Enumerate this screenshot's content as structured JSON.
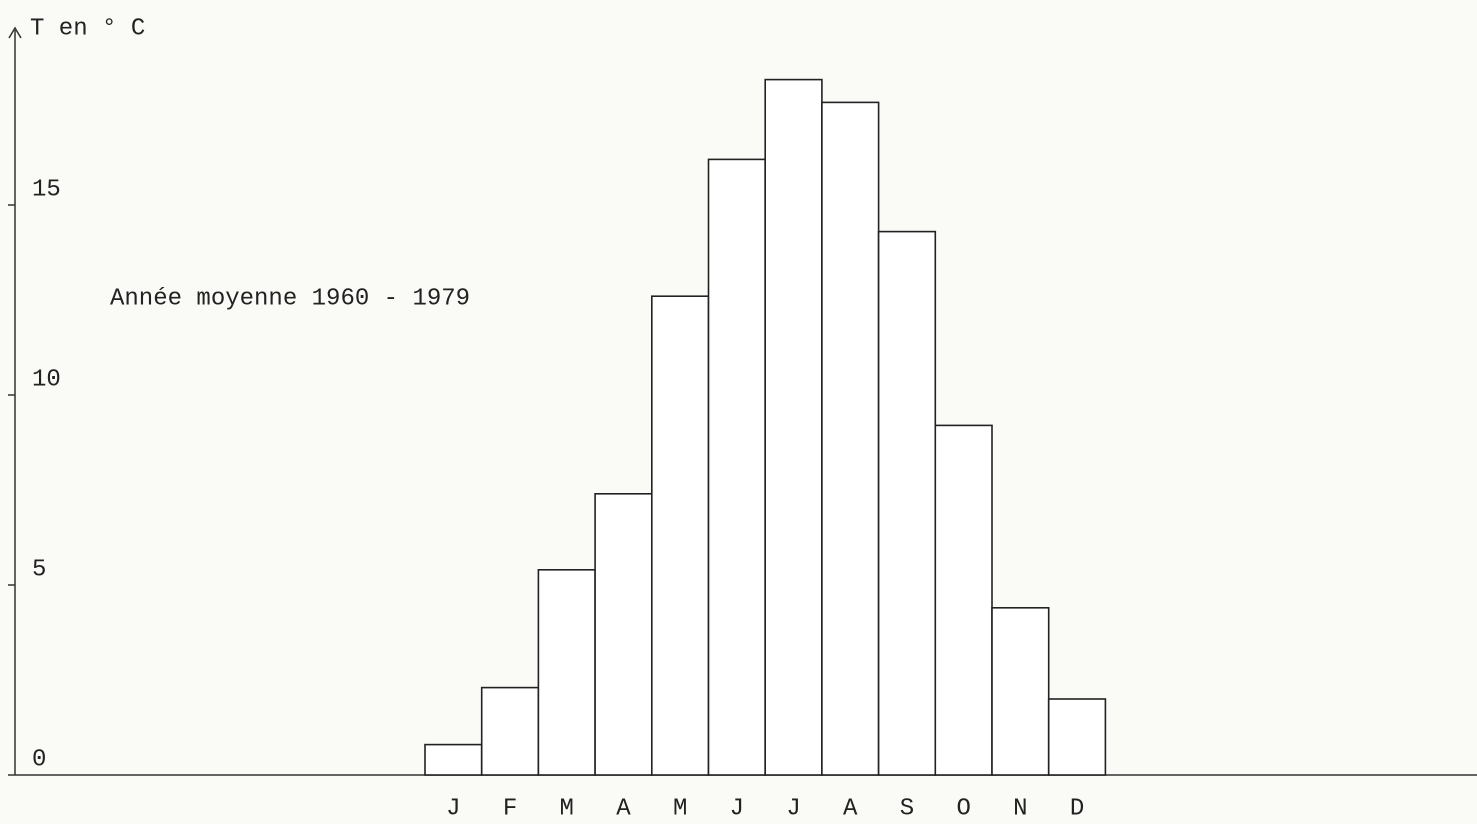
{
  "chart_data": {
    "type": "bar",
    "y_label": "T en ° C",
    "annotation": "Année moyenne 1960 - 1979",
    "categories": [
      "J",
      "F",
      "M",
      "A",
      "M",
      "J",
      "J",
      "A",
      "S",
      "O",
      "N",
      "D"
    ],
    "values": [
      0.8,
      2.3,
      5.4,
      7.4,
      12.6,
      16.2,
      18.3,
      17.7,
      14.3,
      9.2,
      4.4,
      2.0
    ],
    "color": "#ffffff",
    "ylim": [
      0,
      19.5
    ],
    "yticks": [
      0,
      5,
      10,
      15
    ],
    "grid": false
  }
}
